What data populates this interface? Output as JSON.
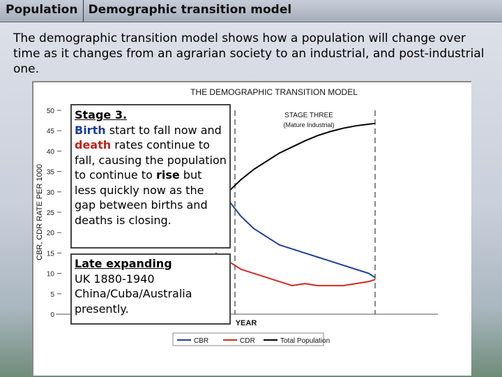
{
  "header": {
    "section": "Population",
    "title": "Demographic transition model"
  },
  "intro": "The demographic transition model shows how a population will change over time as it changes from an agrarian society to an industrial, and post-industrial one.",
  "box1": {
    "heading": "Stage 3.",
    "birth": "Birth",
    "t1": " start to fall now and ",
    "death": "death",
    "t2": " rates continue to fall, causing the population to continue to ",
    "rise": "rise",
    "t3": " but less quickly now as the gap between births and deaths is closing."
  },
  "box2": {
    "heading": "Late expanding",
    "line1": "UK 1880-1940",
    "line2": "China/Cuba/Australia",
    "line3": "presently."
  },
  "chart_data": {
    "type": "line",
    "title": "THE DEMOGRAPHIC TRANSITION MODEL",
    "stage_label": "STAGE THREE",
    "stage_sublabel": "(Mature Industrial)",
    "xlabel": "YEAR",
    "ylabel": "CBR, CDR RATE PER 1000",
    "ylim": [
      0,
      50
    ],
    "yticks": [
      "0",
      "5",
      "10",
      "15",
      "20",
      "25",
      "30",
      "35",
      "40",
      "45",
      "50"
    ],
    "xlim": [
      0,
      100
    ],
    "series": [
      {
        "name": "CBR",
        "color": "#1f3f9f",
        "x": [
          50,
          54,
          58,
          62,
          66,
          70,
          74,
          78,
          82,
          86,
          90,
          94,
          98,
          100
        ],
        "values": [
          31,
          28,
          24,
          21,
          19,
          17,
          16,
          15,
          14,
          13,
          12,
          11,
          10,
          9
        ]
      },
      {
        "name": "CDR",
        "color": "#d12b22",
        "x": [
          50,
          54,
          58,
          62,
          66,
          70,
          74,
          78,
          82,
          86,
          90,
          94,
          98,
          100
        ],
        "values": [
          15,
          13,
          11,
          10,
          9,
          8,
          7,
          7.5,
          7,
          7,
          7,
          7.5,
          8,
          8.5
        ]
      },
      {
        "name": "Total Population",
        "color": "#000000",
        "x": [
          50,
          54,
          58,
          62,
          66,
          70,
          74,
          78,
          82,
          86,
          90,
          94,
          98,
          100
        ],
        "values": [
          27,
          30,
          33,
          35.5,
          37.5,
          39.5,
          41,
          42.5,
          43.8,
          44.8,
          45.6,
          46.2,
          46.6,
          46.8
        ]
      }
    ],
    "legend": [
      "CBR",
      "CDR",
      "Total Population"
    ],
    "legend_position": "bottom"
  }
}
